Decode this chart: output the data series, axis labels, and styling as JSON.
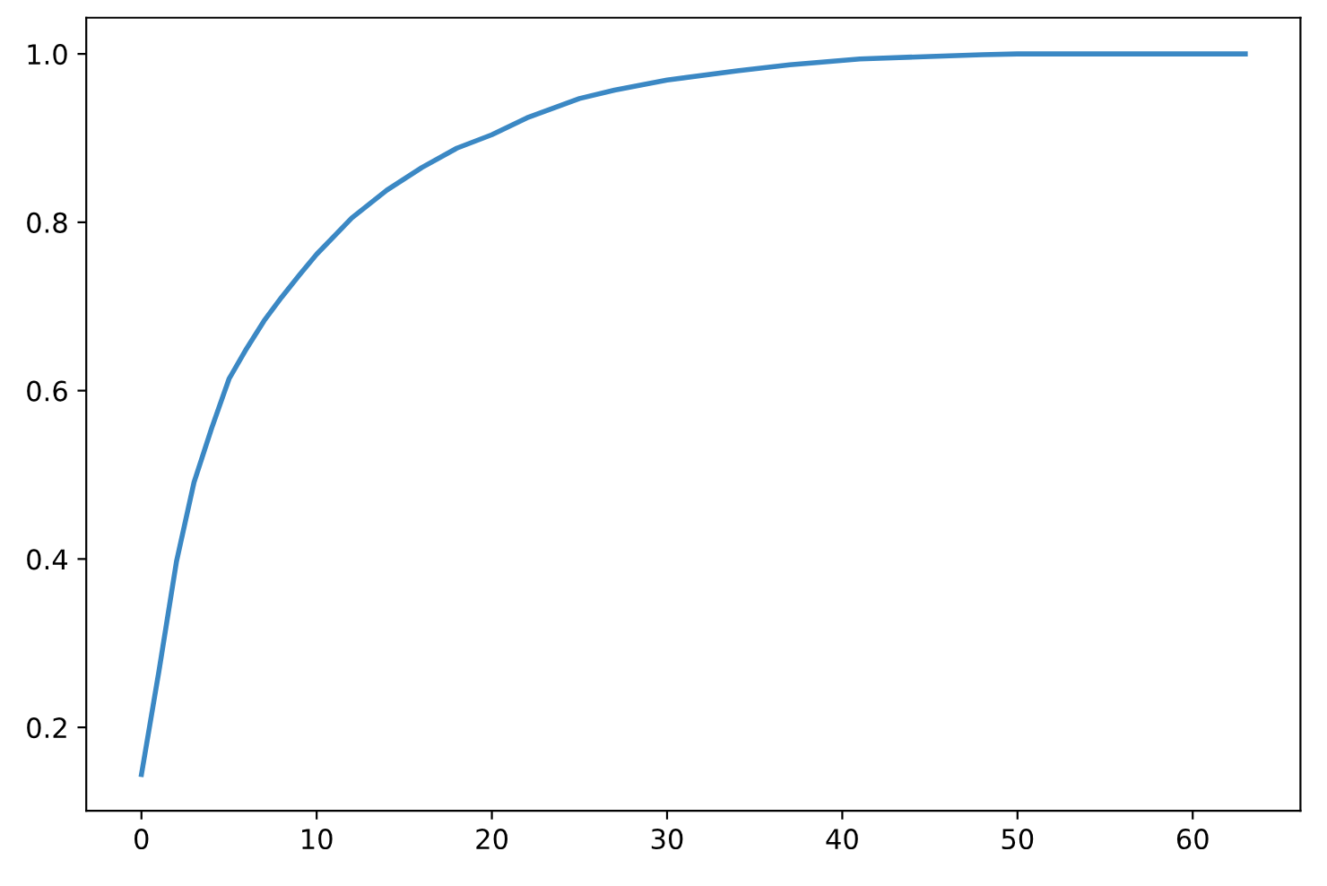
{
  "chart_data": {
    "type": "line",
    "x": [
      0,
      1,
      2,
      3,
      4,
      5,
      6,
      7,
      8,
      9,
      10,
      12,
      14,
      16,
      18,
      20,
      22,
      25,
      27,
      30,
      34,
      37,
      41,
      45,
      48,
      50,
      55,
      60,
      63
    ],
    "series": [
      {
        "color": "#3b88c4",
        "values": [
          0.144,
          0.267,
          0.397,
          0.491,
          0.555,
          0.614,
          0.65,
          0.683,
          0.711,
          0.737,
          0.762,
          0.805,
          0.838,
          0.865,
          0.888,
          0.904,
          0.924,
          0.947,
          0.957,
          0.969,
          0.98,
          0.987,
          0.994,
          0.997,
          0.999,
          1.0,
          1.0,
          1.0,
          1.0
        ]
      }
    ],
    "xlim": [
      -3.15,
      66.15
    ],
    "ylim": [
      0.101,
      1.043
    ],
    "xticks": [
      0,
      10,
      20,
      30,
      40,
      50,
      60
    ],
    "yticks": [
      0.2,
      0.4,
      0.6,
      0.8,
      {
        "value": 1.0,
        "label": "1.0"
      }
    ],
    "grid": false,
    "legend": false,
    "marker": "none",
    "line_style": "solid"
  }
}
